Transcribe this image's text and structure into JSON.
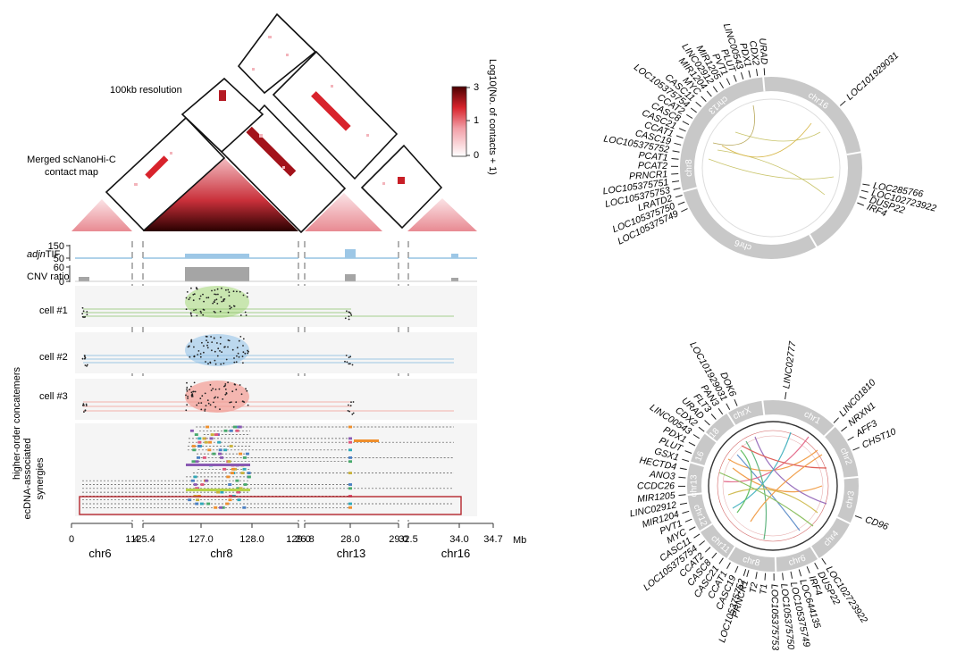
{
  "figure": {
    "resolution_label": "100kb resolution",
    "merged_label_line1": "Merged scNanoHi-C",
    "merged_label_line2": "contact map",
    "colorbar_title": "Log10(No. of contacts + 1)",
    "colorbar_ticks": [
      "3",
      "1",
      "0"
    ],
    "colors": {
      "low": "#ffffff",
      "mid": "#e8505b",
      "high": "#6b0000",
      "track_blue": "#7fb6dc",
      "track_gray": "#9a9a9a",
      "cell1": "#c9e6b0",
      "cell2": "#bcd8ee",
      "cell3": "#f4b6b0",
      "frame": "#b5272d"
    }
  },
  "tracks": {
    "adjntif_label_prefix": "adj",
    "adjntif_label_italic": "n",
    "adjntif_label_suffix": "TIF",
    "adjntif_ticks": [
      "150",
      "50"
    ],
    "cnv_label": "CNV ratio",
    "cnv_ticks": [
      "60",
      "0"
    ],
    "cells": [
      "cell #1",
      "cell #2",
      "cell #3"
    ],
    "higher_order_label": "higher-order concatemers",
    "synergy_label_line1": "ecDNA-associated",
    "synergy_label_line2": "synergies"
  },
  "axis": {
    "unit": "Mb",
    "ticks": [
      "0",
      "1.4",
      "125.4",
      "127.0",
      "128.0",
      "129.0",
      "26.8",
      "28.0",
      "29.0",
      "32.5",
      "34.0",
      "34.7"
    ],
    "chromosomes": [
      "chr6",
      "chr8",
      "chr13",
      "chr16"
    ]
  },
  "circos_top": {
    "segments": [
      "chr13",
      "chr16",
      "chr6",
      "chr8"
    ],
    "labels_left": [
      "URAD",
      "CDX2",
      "PDX1",
      "LINC00543",
      "PLUT",
      "PVT1",
      "MIR1205",
      "LINC02912",
      "MIR1204",
      "MYC",
      "CASC11",
      "LOC105375754",
      "CCAT2",
      "CASC8",
      "CASC21",
      "CCAT1",
      "CASC19",
      "LOC105375752",
      "PCAT1",
      "PCAT2",
      "PRNCR1",
      "LOC105375751",
      "LOC105375753",
      "LRATD2",
      "LOC105375750",
      "LOC105375749"
    ],
    "labels_right": [
      "LOC101929031",
      "LOC285766",
      "LOC102723922",
      "DUSP22",
      "IRF4"
    ]
  },
  "circos_bottom": {
    "segments": [
      "chr1",
      "chr2",
      "chr3",
      "chr4",
      "chr6",
      "chr8",
      "chr11",
      "chr12",
      "chr13",
      "16",
      "18",
      "chrX"
    ],
    "labels": [
      "LINC02777",
      "LINC01810",
      "NRXN1",
      "AFF3",
      "CHST10",
      "CD96",
      "LOC102723922",
      "DUSP22",
      "IRF4",
      "LOC644135",
      "LOC105375749",
      "LOC105375750",
      "LOC105375753",
      "T1",
      "T2",
      "PRNCR1",
      "LOC105375752",
      "CASC19",
      "CCAT1",
      "CASC21",
      "CASC8",
      "CCAT2",
      "LOC105375754",
      "CASC11",
      "MYC",
      "PVT1",
      "MIR1204",
      "LINC02912",
      "MIR1205",
      "CCDC26",
      "ANO3",
      "HECTD4",
      "GSX1",
      "PLUT",
      "PDX1",
      "LINC00543",
      "CDX2",
      "URAD",
      "FLT3",
      "PAN3",
      "LOC101929031",
      "DOK6"
    ]
  },
  "chart_data": {
    "type": "heatmap",
    "title": "Merged scNanoHi-C contact map",
    "colorbar_range": [
      0,
      3
    ],
    "regions": [
      {
        "chrom": "chr6",
        "start": 0,
        "end": 1.4
      },
      {
        "chrom": "chr8",
        "start": 125.4,
        "end": 129.0
      },
      {
        "chrom": "chr13",
        "start": 26.8,
        "end": 29.0
      },
      {
        "chrom": "chr16",
        "start": 32.5,
        "end": 34.7
      }
    ],
    "adjnTIF_range": [
      0,
      150
    ],
    "cnv_ratio_range": [
      0,
      60
    ],
    "cells": 3
  }
}
